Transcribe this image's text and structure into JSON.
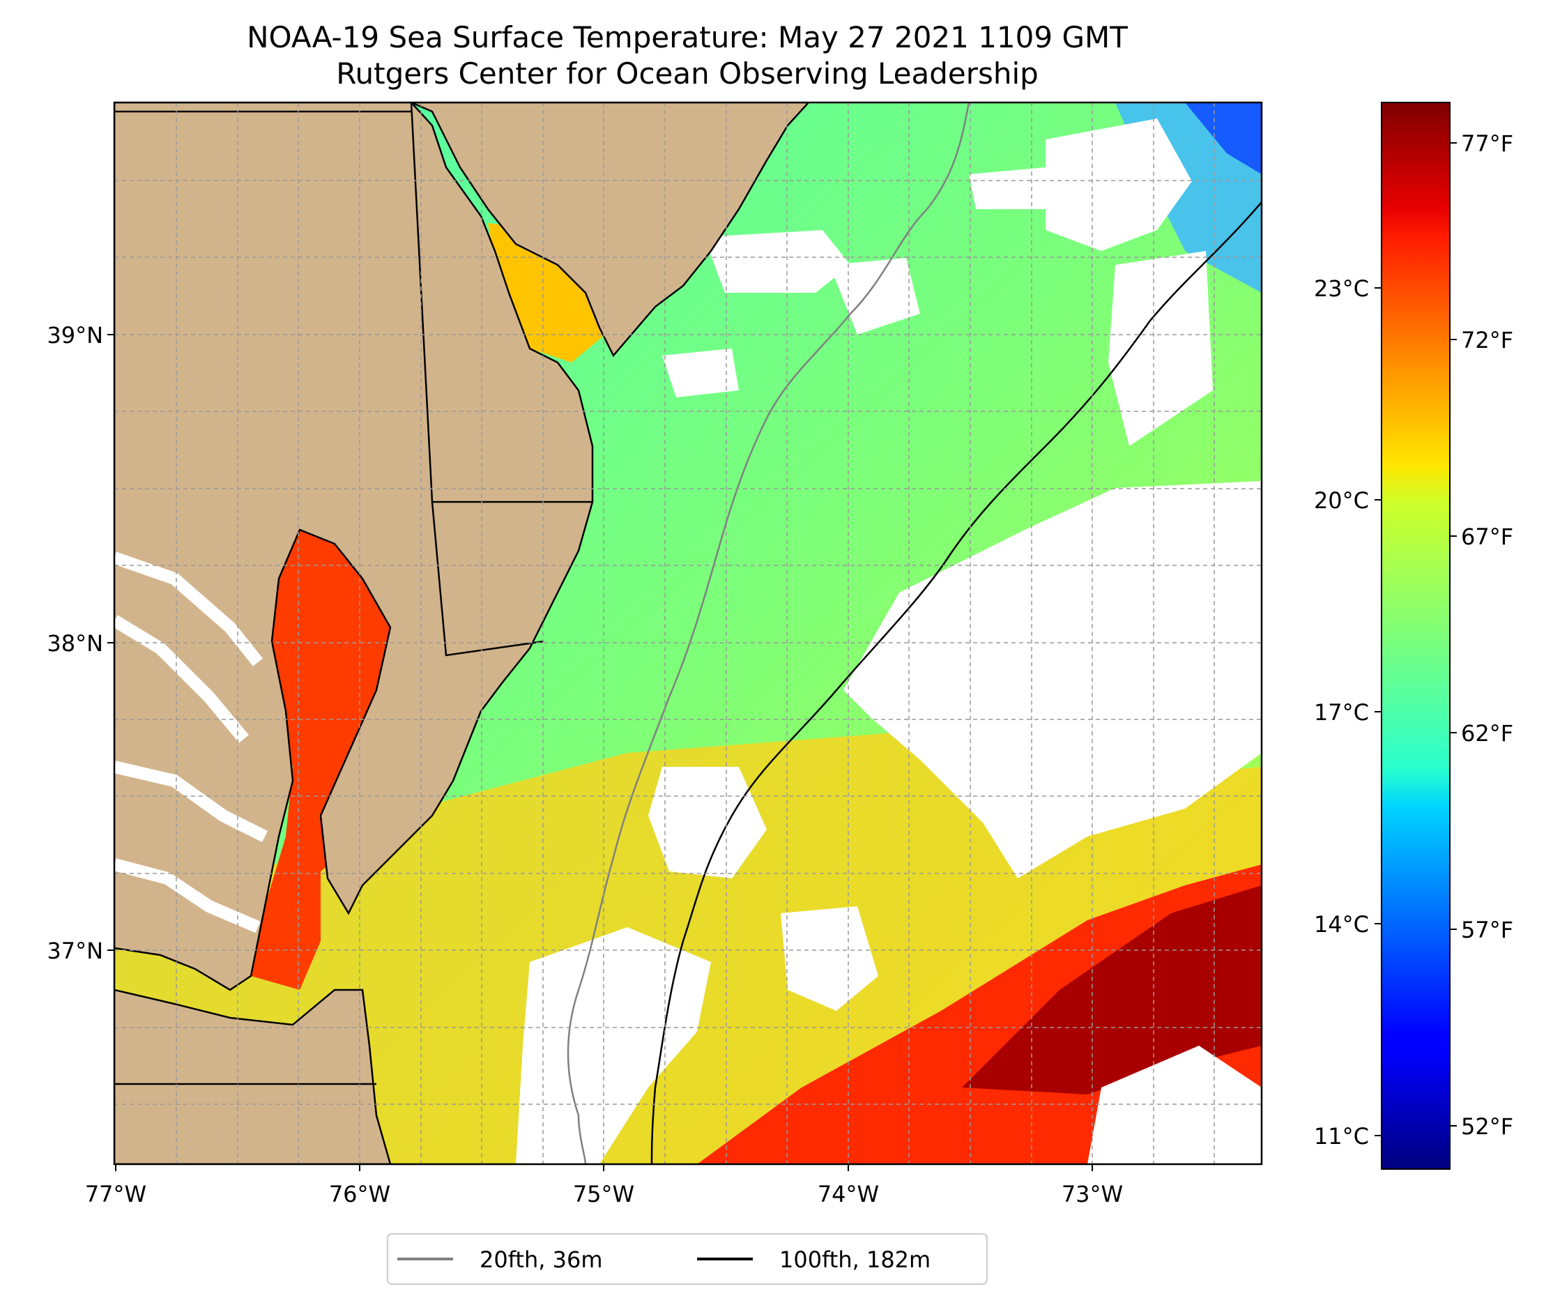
{
  "title": {
    "line1": "NOAA-19 Sea Surface Temperature: May 27 2021 1109 GMT",
    "line2": "Rutgers Center for Ocean Observing Leadership"
  },
  "map": {
    "lon_range": [
      -77.0,
      -72.3
    ],
    "lat_range": [
      36.3,
      39.75
    ],
    "land_color": "#d2b48c",
    "x_ticks": [
      "77°W",
      "76°W",
      "75°W",
      "74°W",
      "73°W"
    ],
    "y_ticks": [
      "39°N",
      "38°N",
      "37°N"
    ],
    "gridlines": "dashed"
  },
  "colorbar": {
    "colormap": "jet",
    "celsius_ticks": [
      "23°C",
      "20°C",
      "17°C",
      "14°C",
      "11°C"
    ],
    "fahrenheit_ticks": [
      "77°F",
      "72°F",
      "67°F",
      "62°F",
      "57°F",
      "52°F"
    ]
  },
  "legend": {
    "items": [
      {
        "label": "20fth, 36m",
        "color": "#808080"
      },
      {
        "label": "100fth, 182m",
        "color": "#000000"
      }
    ]
  }
}
